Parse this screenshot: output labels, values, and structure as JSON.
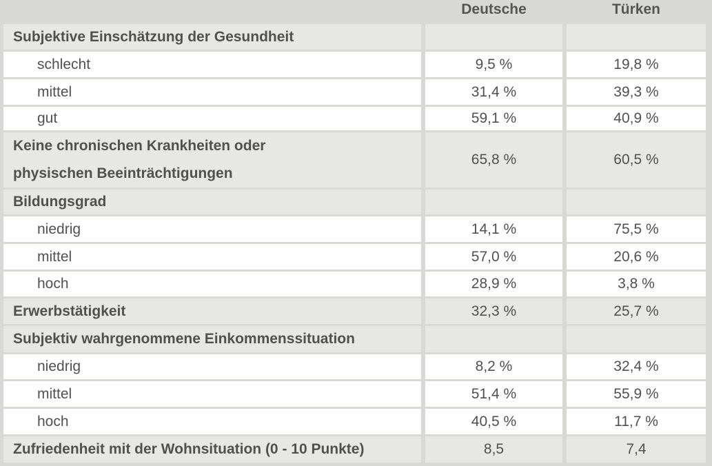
{
  "chart_data": {
    "type": "table",
    "columns": [
      "Deutsche",
      "Türken"
    ],
    "rows": [
      {
        "label": "Subjektive Einschätzung der Gesundheit",
        "kind": "category",
        "values": [
          "",
          ""
        ]
      },
      {
        "label": "schlecht",
        "kind": "item",
        "values": [
          "9,5 %",
          "19,8 %"
        ]
      },
      {
        "label": "mittel",
        "kind": "item",
        "values": [
          "31,4 %",
          "39,3 %"
        ]
      },
      {
        "label": "gut",
        "kind": "item",
        "values": [
          "59,1 %",
          "40,9 %"
        ]
      },
      {
        "label": [
          "Keine chronischen Krankheiten oder",
          "physischen Beeinträchtigungen"
        ],
        "kind": "category",
        "values": [
          "65,8 %",
          "60,5 %"
        ]
      },
      {
        "label": "Bildungsgrad",
        "kind": "category",
        "values": [
          "",
          ""
        ]
      },
      {
        "label": "niedrig",
        "kind": "item",
        "values": [
          "14,1 %",
          "75,5 %"
        ]
      },
      {
        "label": "mittel",
        "kind": "item",
        "values": [
          "57,0 %",
          "20,6 %"
        ]
      },
      {
        "label": "hoch",
        "kind": "item",
        "values": [
          "28,9 %",
          "3,8 %"
        ]
      },
      {
        "label": "Erwerbstätigkeit",
        "kind": "category",
        "values": [
          "32,3 %",
          "25,7 %"
        ]
      },
      {
        "label": "Subjektiv wahrgenommene Einkommenssituation",
        "kind": "category",
        "values": [
          "",
          ""
        ]
      },
      {
        "label": "niedrig",
        "kind": "item",
        "values": [
          "8,2 %",
          "32,4 %"
        ]
      },
      {
        "label": "mittel",
        "kind": "item",
        "values": [
          "51,4 %",
          "55,9 %"
        ]
      },
      {
        "label": "hoch",
        "kind": "item",
        "values": [
          "40,5 %",
          "11,7 %"
        ]
      },
      {
        "label": "Zufriedenheit mit der Wohnsituation (0 - 10 Punkte)",
        "kind": "category",
        "values": [
          "8,5",
          "7,4"
        ]
      }
    ]
  }
}
